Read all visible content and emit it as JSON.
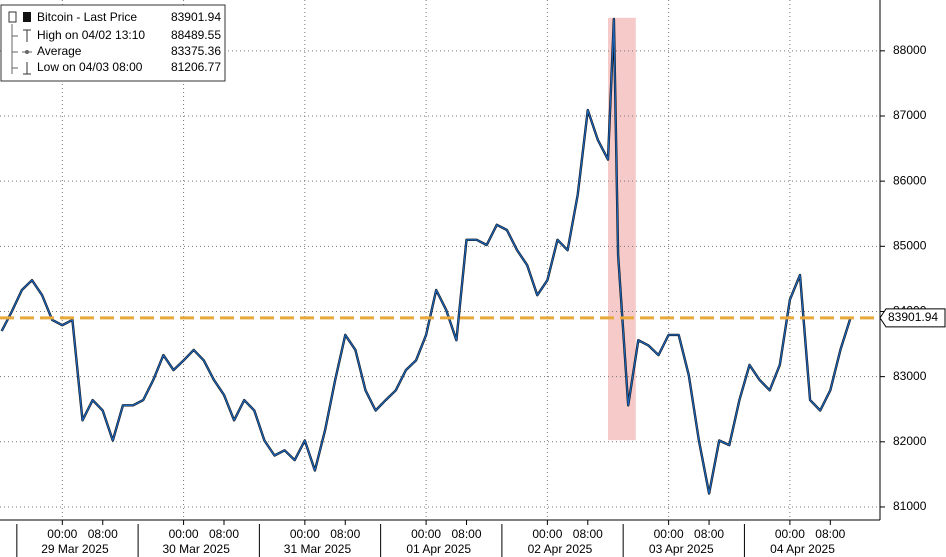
{
  "chart_data": {
    "type": "line",
    "x": [
      "2025-03-28 12:00",
      "2025-03-28 14:00",
      "2025-03-28 16:00",
      "2025-03-28 18:00",
      "2025-03-28 20:00",
      "2025-03-28 22:00",
      "2025-03-29 00:00",
      "2025-03-29 02:00",
      "2025-03-29 04:00",
      "2025-03-29 06:00",
      "2025-03-29 08:00",
      "2025-03-29 10:00",
      "2025-03-29 12:00",
      "2025-03-29 14:00",
      "2025-03-29 16:00",
      "2025-03-29 18:00",
      "2025-03-29 20:00",
      "2025-03-29 22:00",
      "2025-03-30 00:00",
      "2025-03-30 02:00",
      "2025-03-30 04:00",
      "2025-03-30 06:00",
      "2025-03-30 08:00",
      "2025-03-30 10:00",
      "2025-03-30 12:00",
      "2025-03-30 14:00",
      "2025-03-30 16:00",
      "2025-03-30 18:00",
      "2025-03-30 20:00",
      "2025-03-30 22:00",
      "2025-03-31 00:00",
      "2025-03-31 02:00",
      "2025-03-31 04:00",
      "2025-03-31 06:00",
      "2025-03-31 08:00",
      "2025-03-31 10:00",
      "2025-03-31 12:00",
      "2025-03-31 14:00",
      "2025-03-31 16:00",
      "2025-03-31 18:00",
      "2025-03-31 20:00",
      "2025-03-31 22:00",
      "2025-04-01 00:00",
      "2025-04-01 02:00",
      "2025-04-01 04:00",
      "2025-04-01 06:00",
      "2025-04-01 08:00",
      "2025-04-01 10:00",
      "2025-04-01 12:00",
      "2025-04-01 14:00",
      "2025-04-01 16:00",
      "2025-04-01 18:00",
      "2025-04-01 20:00",
      "2025-04-01 22:00",
      "2025-04-02 00:00",
      "2025-04-02 02:00",
      "2025-04-02 04:00",
      "2025-04-02 06:00",
      "2025-04-02 08:00",
      "2025-04-02 10:00",
      "2025-04-02 12:00",
      "2025-04-02 13:10",
      "2025-04-02 14:00",
      "2025-04-02 16:00",
      "2025-04-02 18:00",
      "2025-04-02 20:00",
      "2025-04-02 22:00",
      "2025-04-03 00:00",
      "2025-04-03 02:00",
      "2025-04-03 04:00",
      "2025-04-03 06:00",
      "2025-04-03 08:00",
      "2025-04-03 10:00",
      "2025-04-03 12:00",
      "2025-04-03 14:00",
      "2025-04-03 16:00",
      "2025-04-03 18:00",
      "2025-04-03 20:00",
      "2025-04-03 22:00",
      "2025-04-04 00:00",
      "2025-04-04 02:00",
      "2025-04-04 04:00",
      "2025-04-04 06:00",
      "2025-04-04 08:00",
      "2025-04-04 10:00",
      "2025-04-04 12:00"
    ],
    "series": [
      {
        "name": "Bitcoin - Last Price",
        "color": "#1c64b8",
        "values": [
          83700,
          84000,
          84330,
          84480,
          84250,
          83870,
          83790,
          83870,
          82330,
          82640,
          82480,
          82020,
          82560,
          82560,
          82640,
          82950,
          83330,
          83100,
          83250,
          83410,
          83250,
          82950,
          82720,
          82330,
          82640,
          82480,
          82020,
          81790,
          81870,
          81720,
          82020,
          81560,
          82180,
          82950,
          83640,
          83410,
          82790,
          82480,
          82640,
          82790,
          83100,
          83250,
          83640,
          84330,
          84020,
          83560,
          85100,
          85100,
          85020,
          85330,
          85250,
          84940,
          84710,
          84250,
          84480,
          85100,
          84940,
          85790,
          87090,
          86630,
          86330,
          88489.55,
          84870,
          82560,
          83560,
          83480,
          83330,
          83640,
          83640,
          83020,
          82020,
          81206.77,
          82020,
          81950,
          82640,
          83180,
          82950,
          82790,
          83180,
          84180,
          84560,
          82640,
          82480,
          82790,
          83410,
          83901.94
        ]
      }
    ],
    "stats": [
      {
        "label": "High on 04/02 13:10",
        "value": 88489.55
      },
      {
        "label": "Average",
        "value": 83375.36
      },
      {
        "label": "Low on 04/03 08:00",
        "value": 81206.77
      }
    ],
    "xlim": [
      "2025-03-28 11:40",
      "2025-04-04 17:50"
    ],
    "xticks": [
      {
        "value": "2025-03-29 00:00",
        "label": "00:00"
      },
      {
        "value": "2025-03-29 08:00",
        "label": "08:00"
      },
      {
        "value": "2025-03-30 00:00",
        "label": "00:00"
      },
      {
        "value": "2025-03-30 08:00",
        "label": "08:00"
      },
      {
        "value": "2025-03-31 00:00",
        "label": "00:00"
      },
      {
        "value": "2025-03-31 08:00",
        "label": "08:00"
      },
      {
        "value": "2025-04-01 00:00",
        "label": "00:00"
      },
      {
        "value": "2025-04-01 08:00",
        "label": "08:00"
      },
      {
        "value": "2025-04-02 00:00",
        "label": "00:00"
      },
      {
        "value": "2025-04-02 08:00",
        "label": "08:00"
      },
      {
        "value": "2025-04-03 00:00",
        "label": "00:00"
      },
      {
        "value": "2025-04-03 08:00",
        "label": "08:00"
      },
      {
        "value": "2025-04-04 00:00",
        "label": "00:00"
      },
      {
        "value": "2025-04-04 08:00",
        "label": "08:00"
      }
    ],
    "days": [
      "29 Mar 2025",
      "30 Mar 2025",
      "31 Mar 2025",
      "01 Apr 2025",
      "02 Apr 2025",
      "03 Apr 2025",
      "04 Apr 2025"
    ],
    "ylim": [
      80800,
      88780
    ],
    "yticks": [
      81000,
      82000,
      83000,
      84000,
      85000,
      86000,
      87000,
      88000
    ],
    "grid": true,
    "highlight": {
      "x": [
        "2025-04-02 12:00",
        "2025-04-02 17:30"
      ],
      "y": [
        82025,
        88507
      ],
      "color": "#f4b8b8"
    },
    "last_line_color": "#e8a93a"
  }
}
